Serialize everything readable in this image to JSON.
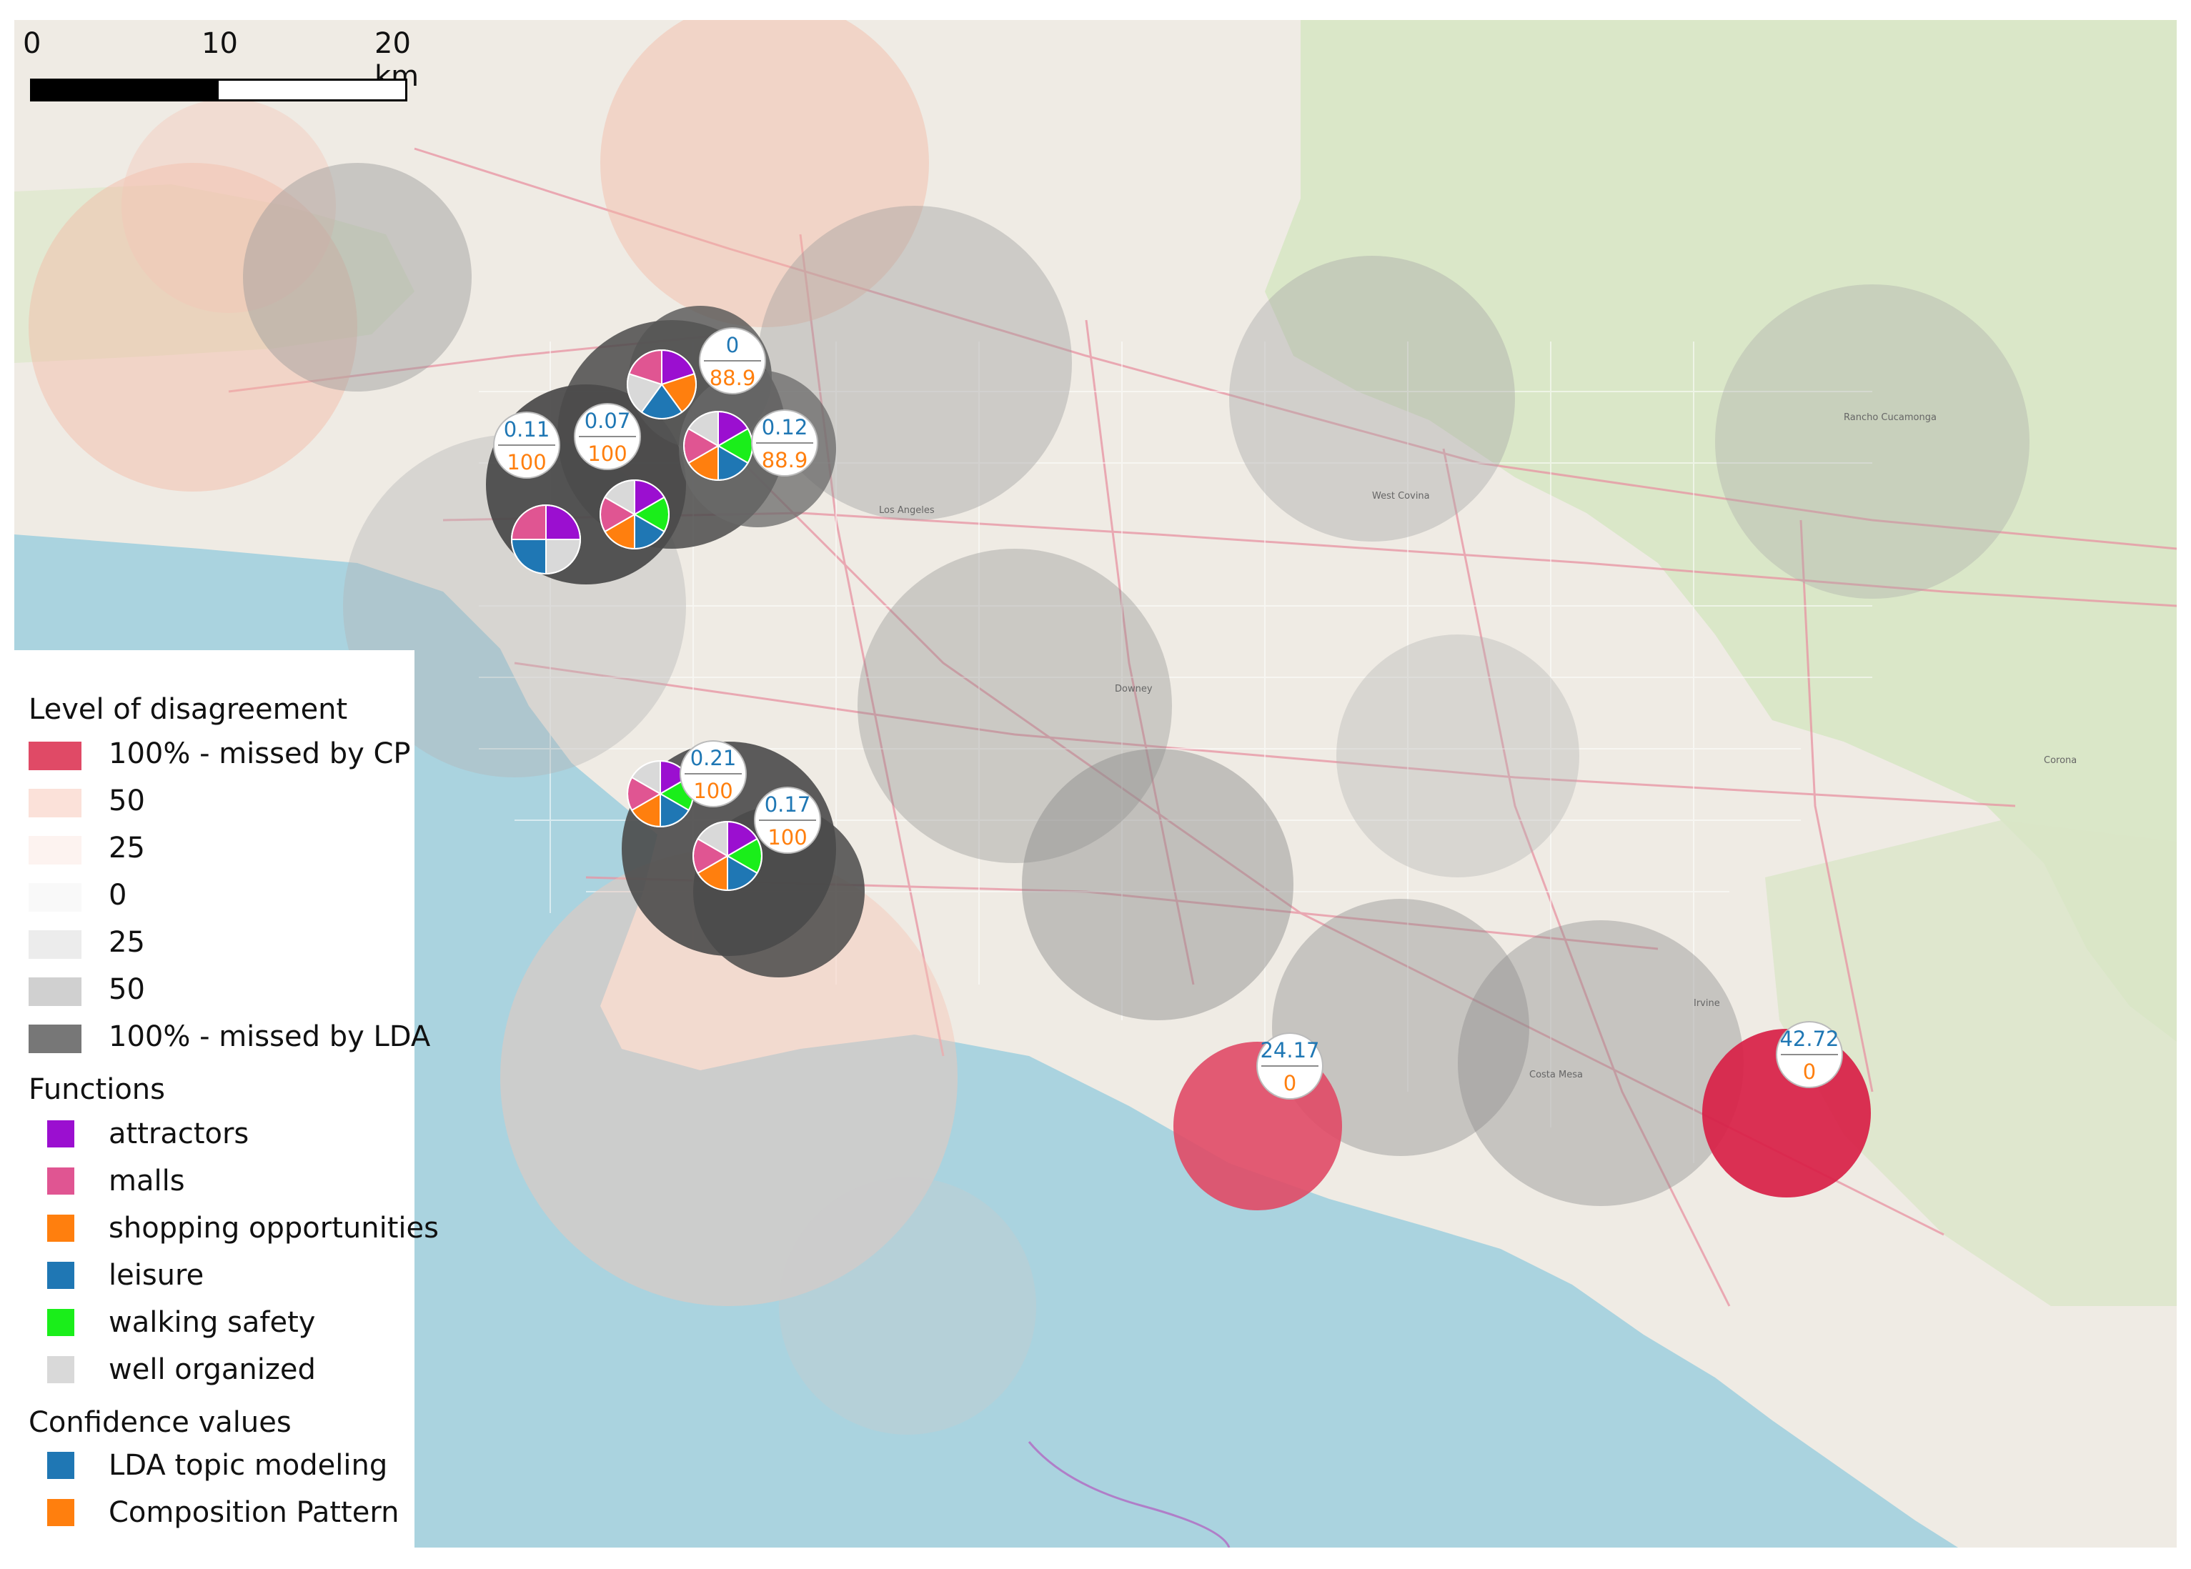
{
  "scale_bar": {
    "labels": [
      "0",
      "10",
      "20 km"
    ]
  },
  "legend": {
    "disagreement_title": "Level of disagreement",
    "disagreement_items": [
      {
        "label": "100% - missed by CP",
        "color": "#e04a66"
      },
      {
        "label": "50",
        "color": "#fbe1d9"
      },
      {
        "label": "25",
        "color": "#fdf3f0"
      },
      {
        "label": "0",
        "color": "#f9f9f9"
      },
      {
        "label": "25",
        "color": "#ececec"
      },
      {
        "label": "50",
        "color": "#d0d0d0"
      },
      {
        "label": "100% - missed by LDA",
        "color": "#777777"
      }
    ],
    "functions_title": "Functions",
    "functions_items": [
      {
        "label": "attractors",
        "color": "#9b0fd0"
      },
      {
        "label": "malls",
        "color": "#e05592"
      },
      {
        "label": "shopping opportunities",
        "color": "#ff7f0e"
      },
      {
        "label": "leisure",
        "color": "#1f77b4"
      },
      {
        "label": "walking safety",
        "color": "#1aee1a"
      },
      {
        "label": "well organized",
        "color": "#d9d9d9"
      }
    ],
    "confidence_title": "Confidence values",
    "confidence_items": [
      {
        "label": "LDA topic modeling",
        "color": "#1f77b4"
      },
      {
        "label": "Composition Pattern",
        "color": "#ff7f0e"
      }
    ]
  },
  "confidence_callouts": [
    {
      "lda": "0",
      "cp": "88.9"
    },
    {
      "lda": "0.07",
      "cp": "100"
    },
    {
      "lda": "0.11",
      "cp": "100"
    },
    {
      "lda": "0.12",
      "cp": "88.9"
    },
    {
      "lda": "0.21",
      "cp": "100"
    },
    {
      "lda": "0.17",
      "cp": "100"
    },
    {
      "lda": "24.17",
      "cp": "0"
    },
    {
      "lda": "42.72",
      "cp": "0"
    }
  ],
  "colors": {
    "ocean": "#aad3df",
    "land": "#efebe4",
    "park": "#cfe4b8",
    "highway": "#e892a2",
    "lda_value": "#1f77b4",
    "cp_value": "#ff7f0e"
  }
}
